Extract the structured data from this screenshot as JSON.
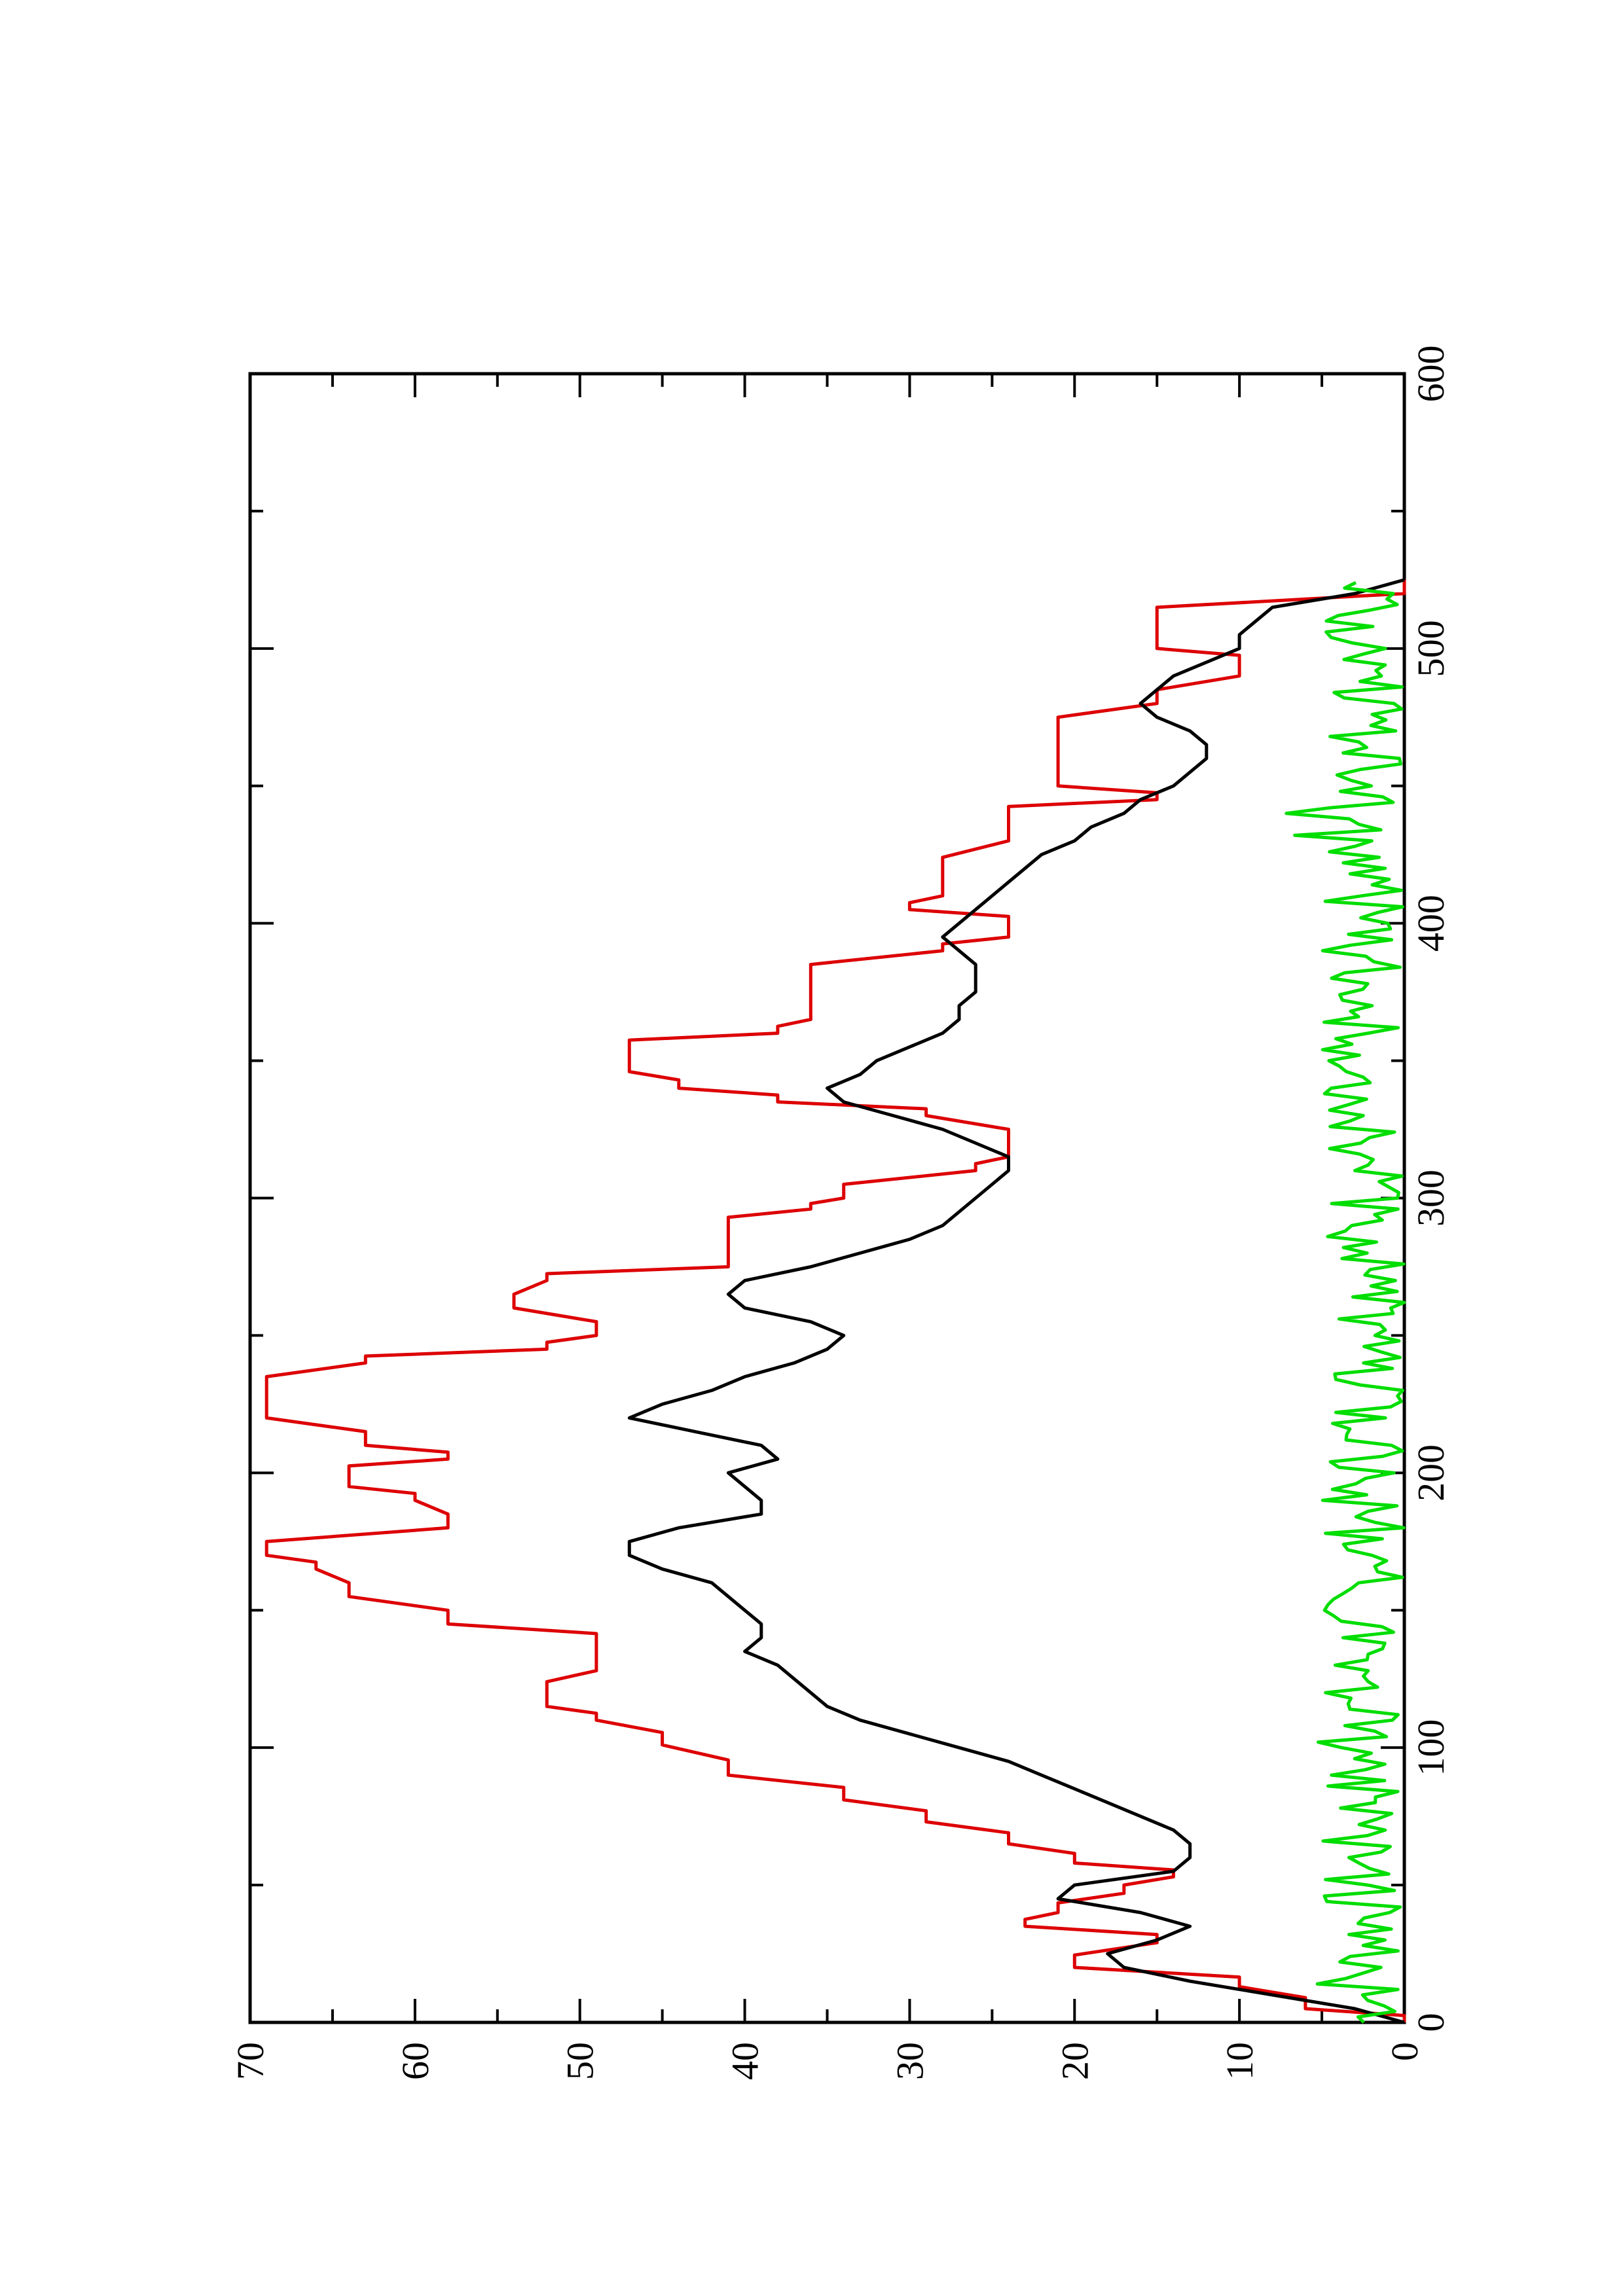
{
  "chart_data": {
    "type": "line",
    "orientation": "rotated-90-ccw",
    "title": "",
    "xlabel": "",
    "ylabel": "",
    "xlim": [
      0,
      600
    ],
    "ylim": [
      0,
      70
    ],
    "grid": false,
    "legend": "none",
    "x_ticks": [
      "0",
      "100",
      "200",
      "300",
      "400",
      "500",
      "600"
    ],
    "y_ticks": [
      "0",
      "10",
      "20",
      "30",
      "40",
      "50",
      "60",
      "70"
    ],
    "series": [
      {
        "color": "#dd0000",
        "style": "step",
        "x": [
          0,
          5,
          13,
          20,
          29,
          35,
          40,
          47,
          53,
          58,
          65,
          73,
          81,
          90,
          101,
          110,
          115,
          120,
          128,
          138,
          145,
          155,
          165,
          170,
          180,
          190,
          195,
          200,
          205,
          210,
          220,
          230,
          240,
          245,
          250,
          260,
          270,
          275,
          290,
          296,
          300,
          310,
          315,
          320,
          330,
          335,
          340,
          346,
          355,
          360,
          365,
          380,
          390,
          395,
          400,
          405,
          410,
          418,
          430,
          440,
          445,
          450,
          460,
          470,
          480,
          490,
          495,
          500,
          510,
          520,
          525
        ],
        "y": [
          0,
          6,
          10,
          20,
          15,
          23,
          21,
          17,
          14,
          20,
          24,
          29,
          34,
          41,
          45,
          49,
          52,
          52,
          49,
          49,
          58,
          64,
          66,
          69,
          58,
          60,
          64,
          64,
          58,
          63,
          69,
          69,
          63,
          52,
          49,
          54,
          52,
          41,
          41,
          36,
          34,
          26,
          24,
          24,
          29,
          38,
          44,
          47,
          47,
          38,
          36,
          36,
          28,
          24,
          24,
          30,
          28,
          28,
          24,
          24,
          15,
          21,
          21,
          21,
          15,
          10,
          10,
          15,
          15,
          0,
          0
        ]
      },
      {
        "color": "#000000",
        "style": "line",
        "x": [
          0,
          5,
          10,
          15,
          20,
          25,
          30,
          35,
          40,
          45,
          50,
          55,
          60,
          65,
          70,
          75,
          80,
          85,
          90,
          95,
          100,
          105,
          110,
          115,
          120,
          125,
          130,
          135,
          140,
          145,
          150,
          155,
          160,
          165,
          170,
          175,
          180,
          185,
          190,
          195,
          200,
          205,
          210,
          215,
          220,
          225,
          230,
          235,
          240,
          245,
          250,
          255,
          260,
          265,
          270,
          275,
          280,
          285,
          290,
          295,
          300,
          305,
          310,
          315,
          320,
          325,
          330,
          335,
          340,
          345,
          350,
          355,
          360,
          365,
          370,
          375,
          380,
          385,
          390,
          395,
          400,
          405,
          410,
          415,
          420,
          425,
          430,
          435,
          440,
          445,
          450,
          455,
          460,
          465,
          470,
          475,
          480,
          485,
          490,
          495,
          500,
          505,
          510,
          515,
          520,
          525
        ],
        "y": [
          0,
          3,
          8,
          13,
          17,
          18,
          15,
          13,
          16,
          21,
          20,
          14,
          13,
          13,
          14,
          16,
          18,
          20,
          22,
          24,
          27,
          30,
          33,
          35,
          36,
          37,
          38,
          40,
          39,
          39,
          40,
          41,
          42,
          45,
          47,
          47,
          44,
          39,
          39,
          40,
          41,
          38,
          39,
          43,
          47,
          45,
          42,
          40,
          37,
          35,
          34,
          36,
          40,
          41,
          40,
          36,
          33,
          30,
          28,
          27,
          26,
          25,
          24,
          24,
          26,
          28,
          31,
          34,
          35,
          33,
          32,
          30,
          28,
          27,
          27,
          26,
          26,
          26,
          27,
          28,
          27,
          26,
          25,
          24,
          23,
          22,
          20,
          19,
          17,
          16,
          14,
          13,
          12,
          12,
          13,
          15,
          16,
          15,
          14,
          12,
          10,
          10,
          9,
          8,
          3,
          0
        ]
      },
      {
        "color": "#00dd00",
        "style": "line",
        "noise": true,
        "x": [
          0,
          525
        ],
        "y": [
          0,
          5
        ]
      }
    ]
  }
}
